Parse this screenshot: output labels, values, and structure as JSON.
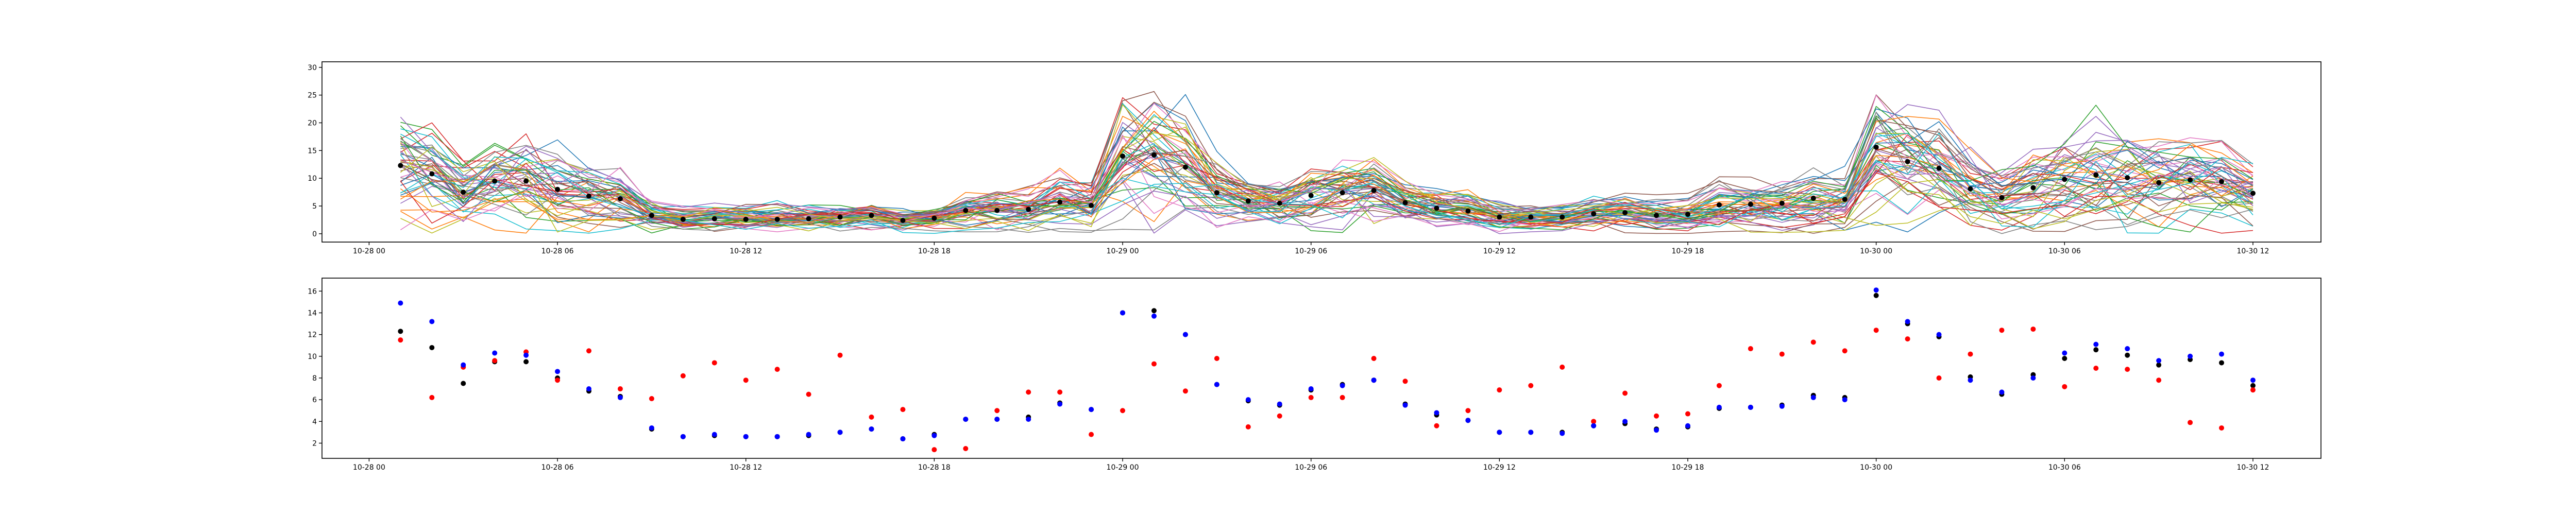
{
  "figure": {
    "background": "#ffffff"
  },
  "chart_data": [
    {
      "type": "line",
      "xlim": [
        "2024-10-27T22:30",
        "2024-10-30T14:10"
      ],
      "ylim": [
        -1.5,
        31
      ],
      "x_ticks": [
        {
          "t": "2024-10-28T00:00",
          "label": "10-28 00"
        },
        {
          "t": "2024-10-28T06:00",
          "label": "10-28 06"
        },
        {
          "t": "2024-10-28T12:00",
          "label": "10-28 12"
        },
        {
          "t": "2024-10-28T18:00",
          "label": "10-28 18"
        },
        {
          "t": "2024-10-29T00:00",
          "label": "10-29 00"
        },
        {
          "t": "2024-10-29T06:00",
          "label": "10-29 06"
        },
        {
          "t": "2024-10-29T12:00",
          "label": "10-29 12"
        },
        {
          "t": "2024-10-29T18:00",
          "label": "10-29 18"
        },
        {
          "t": "2024-10-30T00:00",
          "label": "10-30 00"
        },
        {
          "t": "2024-10-30T06:00",
          "label": "10-30 06"
        },
        {
          "t": "2024-10-30T12:00",
          "label": "10-30 12"
        }
      ],
      "y_ticks": [
        0,
        5,
        10,
        15,
        20,
        25,
        30
      ],
      "x_start": "2024-10-28T01:00",
      "x_step_hours": 1,
      "ensemble_member_count": 50,
      "ensemble_colors": [
        "#1f77b4",
        "#ff7f0e",
        "#2ca02c",
        "#d62728",
        "#9467bd",
        "#8c564b",
        "#e377c2",
        "#7f7f7f",
        "#bcbd22",
        "#17becf"
      ],
      "ensemble_mean": [
        12.3,
        10.8,
        7.5,
        9.5,
        9.5,
        8.0,
        6.8,
        6.3,
        3.3,
        2.6,
        2.7,
        2.6,
        2.6,
        2.7,
        3.0,
        3.3,
        2.4,
        2.8,
        4.2,
        4.2,
        4.4,
        5.7,
        5.1,
        14.0,
        14.2,
        12.0,
        7.4,
        5.9,
        5.5,
        6.9,
        7.4,
        7.8,
        5.6,
        4.6,
        4.1,
        3.0,
        3.0,
        3.0,
        3.6,
        3.8,
        3.3,
        3.5,
        5.2,
        5.3,
        5.5,
        6.4,
        6.2,
        15.6,
        13.0,
        11.8,
        8.1,
        6.5,
        8.3,
        9.8,
        10.6,
        10.1,
        9.2,
        9.7,
        9.4,
        7.3
      ],
      "mean_color": "#000000"
    },
    {
      "type": "scatter",
      "xlim": [
        "2024-10-27T22:30",
        "2024-10-30T14:10"
      ],
      "ylim": [
        0.6,
        17.2
      ],
      "x_ticks": [
        {
          "t": "2024-10-28T00:00",
          "label": "10-28 00"
        },
        {
          "t": "2024-10-28T06:00",
          "label": "10-28 06"
        },
        {
          "t": "2024-10-28T12:00",
          "label": "10-28 12"
        },
        {
          "t": "2024-10-28T18:00",
          "label": "10-28 18"
        },
        {
          "t": "2024-10-29T00:00",
          "label": "10-29 00"
        },
        {
          "t": "2024-10-29T06:00",
          "label": "10-29 06"
        },
        {
          "t": "2024-10-29T12:00",
          "label": "10-29 12"
        },
        {
          "t": "2024-10-29T18:00",
          "label": "10-29 18"
        },
        {
          "t": "2024-10-30T00:00",
          "label": "10-30 00"
        },
        {
          "t": "2024-10-30T06:00",
          "label": "10-30 06"
        },
        {
          "t": "2024-10-30T12:00",
          "label": "10-30 12"
        }
      ],
      "y_ticks": [
        2,
        4,
        6,
        8,
        10,
        12,
        14,
        16
      ],
      "x_start": "2024-10-28T01:00",
      "x_step_hours": 1,
      "series": [
        {
          "color": "#000000",
          "values": [
            12.3,
            10.8,
            7.5,
            9.5,
            9.5,
            8.0,
            6.8,
            6.3,
            3.3,
            2.6,
            2.7,
            2.6,
            2.6,
            2.7,
            3.0,
            3.3,
            2.4,
            2.8,
            4.2,
            4.2,
            4.4,
            5.7,
            5.1,
            14.0,
            14.2,
            12.0,
            7.4,
            5.9,
            5.5,
            6.9,
            7.4,
            7.8,
            5.6,
            4.6,
            4.1,
            3.0,
            3.0,
            3.0,
            3.6,
            3.8,
            3.3,
            3.5,
            5.2,
            5.3,
            5.5,
            6.4,
            6.2,
            15.6,
            13.0,
            11.8,
            8.1,
            6.5,
            8.3,
            9.8,
            10.6,
            10.1,
            9.2,
            9.7,
            9.4,
            7.3
          ]
        },
        {
          "color": "#ff0000",
          "values": [
            11.5,
            6.2,
            9.0,
            9.6,
            10.4,
            7.8,
            10.5,
            7.0,
            6.1,
            8.2,
            9.4,
            7.8,
            8.8,
            6.5,
            10.1,
            4.4,
            5.1,
            1.4,
            1.5,
            5.0,
            6.7,
            6.7,
            2.8,
            5.0,
            9.3,
            6.8,
            9.8,
            3.5,
            4.5,
            6.2,
            6.2,
            9.8,
            7.7,
            3.6,
            5.0,
            6.9,
            7.3,
            9.0,
            4.0,
            6.6,
            4.5,
            4.7,
            7.3,
            10.7,
            10.2,
            11.3,
            10.5,
            12.4,
            11.6,
            8.0,
            10.2,
            12.4,
            12.5,
            7.2,
            8.9,
            8.8,
            7.8,
            3.9,
            3.4,
            6.9
          ]
        },
        {
          "color": "#0000ff",
          "values": [
            14.9,
            13.2,
            9.2,
            10.3,
            10.1,
            8.6,
            7.0,
            6.2,
            3.4,
            2.6,
            2.8,
            2.6,
            2.6,
            2.8,
            3.0,
            3.3,
            2.4,
            2.7,
            4.2,
            4.2,
            4.2,
            5.6,
            5.1,
            14.0,
            13.7,
            12.0,
            7.4,
            6.0,
            5.6,
            7.0,
            7.3,
            7.8,
            5.5,
            4.8,
            4.1,
            3.0,
            3.0,
            2.9,
            3.6,
            4.0,
            3.2,
            3.6,
            5.3,
            5.3,
            5.4,
            6.2,
            6.0,
            16.1,
            13.2,
            12.0,
            7.8,
            6.7,
            8.0,
            10.3,
            11.1,
            10.7,
            9.6,
            10.0,
            10.2,
            7.8
          ]
        }
      ]
    }
  ]
}
